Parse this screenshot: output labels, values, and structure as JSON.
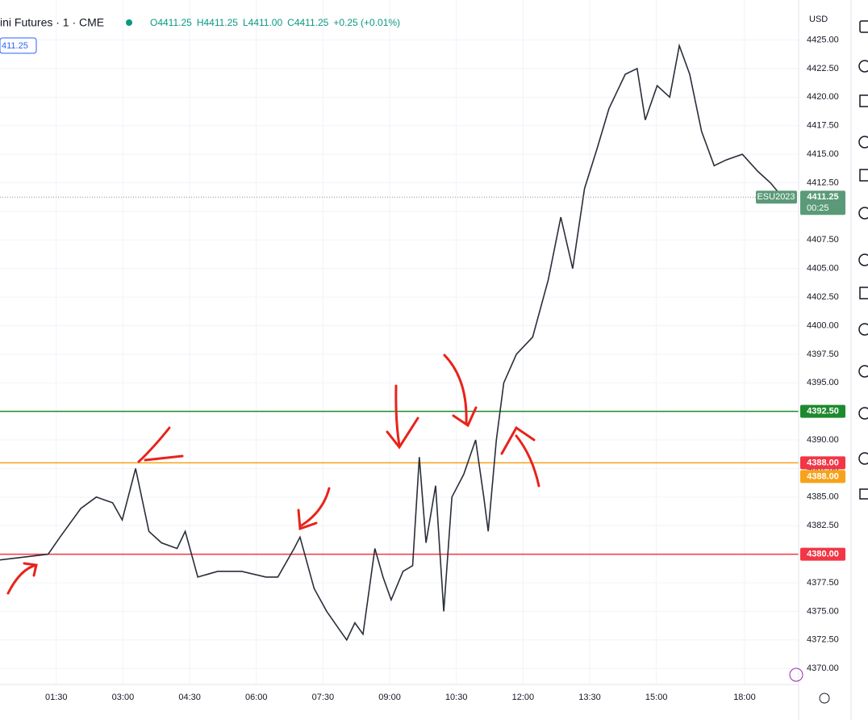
{
  "header": {
    "symbol": "ini Futures · 1 · CME",
    "ohlc": [
      "O4411.25",
      "H4411.25",
      "L4411.00",
      "C4411.25",
      "+0.25 (+0.01%)"
    ],
    "price_tag": "411.25",
    "currency": "USD"
  },
  "chart_data": {
    "type": "line",
    "color": "#2a2e39",
    "x": [
      14,
      79,
      95,
      123,
      144,
      166,
      179,
      197,
      215,
      232,
      253,
      264,
      281,
      308,
      340,
      373,
      389,
      411,
      419,
      438,
      455,
      471,
      482,
      493,
      504,
      520,
      531,
      542,
      558,
      571,
      580,
      589,
      602,
      613,
      624,
      640,
      656,
      667,
      673,
      684,
      694,
      711,
      733,
      754,
      771,
      787,
      803,
      820,
      836,
      858,
      874,
      885,
      901,
      918,
      931,
      945,
      961,
      978,
      994,
      1016,
      1037,
      1054,
      1070
    ],
    "values": [
      4379.5,
      4380,
      4381.5,
      4384,
      4385,
      4384.5,
      4383,
      4387.5,
      4382,
      4381,
      4380.5,
      4382,
      4378,
      4378.5,
      4378.5,
      4378,
      4378,
      4380.5,
      4381.5,
      4377,
      4375,
      4373.5,
      4372.5,
      4374,
      4373,
      4380.5,
      4378,
      4376,
      4378.5,
      4379,
      4388.5,
      4381,
      4386,
      4375,
      4385,
      4387,
      4390,
      4385,
      4382,
      4390,
      4395,
      4397.5,
      4399,
      4404,
      4409.5,
      4405,
      4412,
      4415.5,
      4419,
      4422,
      4422.5,
      4418,
      4421,
      4420,
      4424.5,
      4422,
      4417,
      4414,
      4414.5,
      4415,
      4413.5,
      4412.5,
      4411.25
    ],
    "xlim": [
      14,
      1092
    ],
    "xticks": [
      {
        "value": 90,
        "label": "01:30"
      },
      {
        "value": 180,
        "label": "03:00"
      },
      {
        "value": 270,
        "label": "04:30"
      },
      {
        "value": 360,
        "label": "06:00"
      },
      {
        "value": 450,
        "label": "07:30"
      },
      {
        "value": 540,
        "label": "09:00"
      },
      {
        "value": 630,
        "label": "10:30"
      },
      {
        "value": 720,
        "label": "12:00"
      },
      {
        "value": 810,
        "label": "13:30"
      },
      {
        "value": 900,
        "label": "15:00"
      },
      {
        "value": 1019,
        "label": "18:00"
      }
    ],
    "ylim": [
      4368.6,
      4428.5
    ],
    "yticks": [
      {
        "value": 4370,
        "label": "4370.00"
      },
      {
        "value": 4372.5,
        "label": "4372.50"
      },
      {
        "value": 4375,
        "label": "4375.00"
      },
      {
        "value": 4377.5,
        "label": "4377.50"
      },
      {
        "value": 4380,
        "label": "4380.00"
      },
      {
        "value": 4382.5,
        "label": "4382.50"
      },
      {
        "value": 4385,
        "label": "4385.00"
      },
      {
        "value": 4387.5,
        "label": "4387.50"
      },
      {
        "value": 4390,
        "label": "4390.00"
      },
      {
        "value": 4392.5,
        "label": "4392.50"
      },
      {
        "value": 4395,
        "label": "4395.00"
      },
      {
        "value": 4397.5,
        "label": "4397.50"
      },
      {
        "value": 4400,
        "label": "4400.00"
      },
      {
        "value": 4402.5,
        "label": "4402.50"
      },
      {
        "value": 4405,
        "label": "4405.00"
      },
      {
        "value": 4407.5,
        "label": "4407.50"
      },
      {
        "value": 4410,
        "label": "4410.00"
      },
      {
        "value": 4412.5,
        "label": "4412.50"
      },
      {
        "value": 4415,
        "label": "4415.00"
      },
      {
        "value": 4417.5,
        "label": "4417.50"
      },
      {
        "value": 4420,
        "label": "4420.00"
      },
      {
        "value": 4422.5,
        "label": "4422.50"
      },
      {
        "value": 4425,
        "label": "4425.00"
      }
    ],
    "grid": true,
    "levels": [
      {
        "value": 4392.5,
        "label": "4392.50",
        "color": "#1e8a2e"
      },
      {
        "value": 4388,
        "label": "4388.00",
        "color": "#f7a21b"
      },
      {
        "value": 4380,
        "label": "4380.00",
        "color": "#f23645"
      }
    ],
    "alert_tag": {
      "value": 4388,
      "label": "4388.00",
      "color": "#f23645"
    },
    "last": {
      "value": 4411.25,
      "label": "4411.25",
      "symbol": "ESU2023",
      "countdown": "00:25",
      "color": "#5b9a78"
    }
  }
}
